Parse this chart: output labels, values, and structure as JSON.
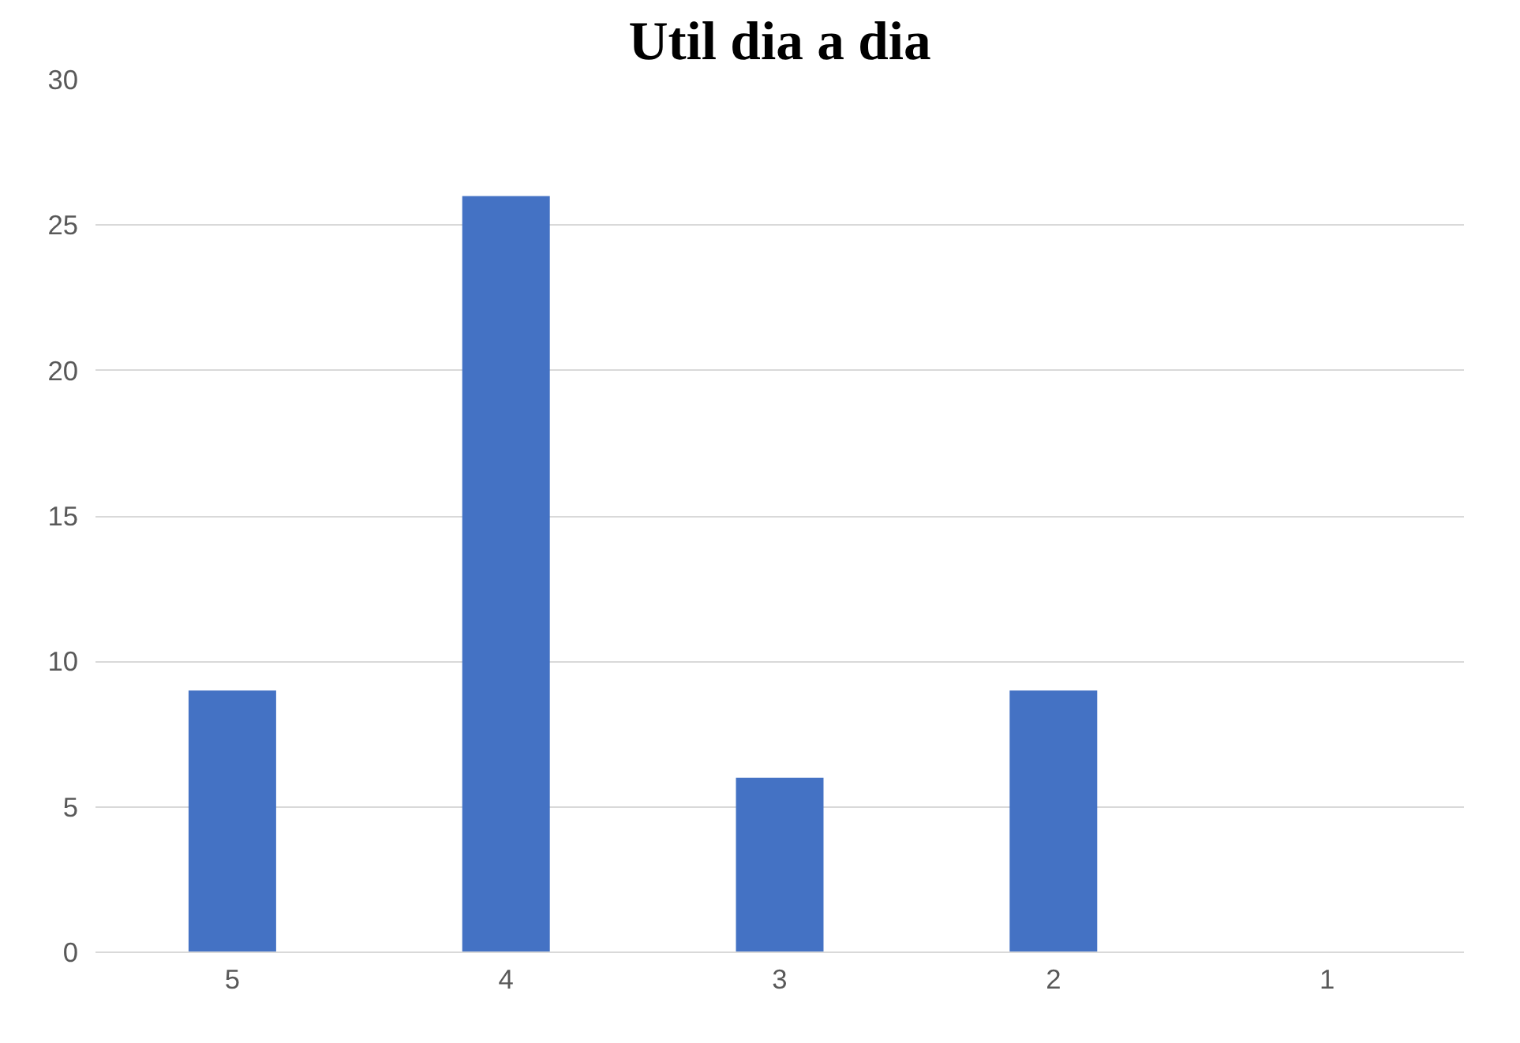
{
  "chart_data": {
    "type": "bar",
    "title": "Util dia a dia",
    "categories": [
      "5",
      "4",
      "3",
      "2",
      "1"
    ],
    "values": [
      9,
      26,
      6,
      9,
      0
    ],
    "color": "#4472c4",
    "ylim": [
      0,
      30
    ],
    "yticks": [
      0,
      5,
      10,
      15,
      20,
      25,
      30
    ],
    "grid": "y"
  }
}
